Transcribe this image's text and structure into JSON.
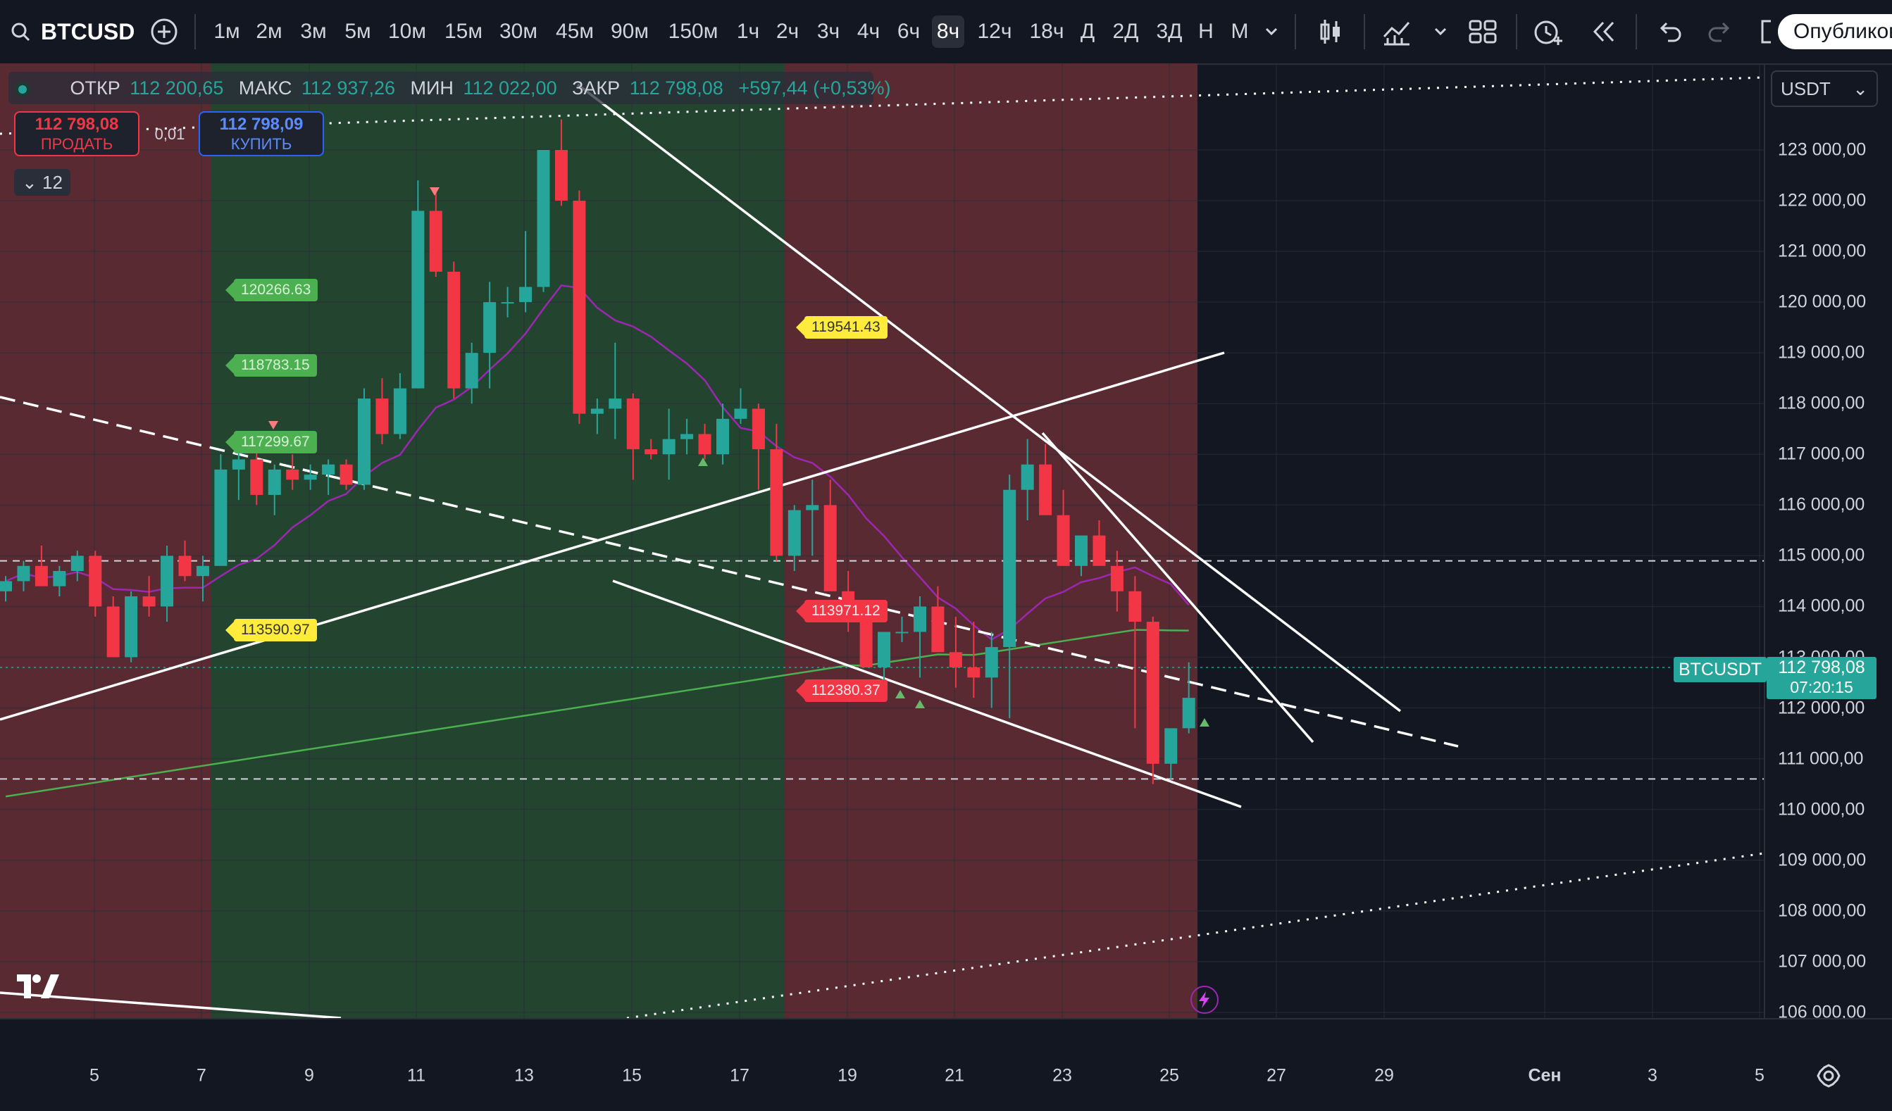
{
  "toolbar": {
    "symbol": "BTCUSD",
    "intervals": [
      "1м",
      "2м",
      "3м",
      "5м",
      "10м",
      "15м",
      "30м",
      "45м",
      "90м",
      "150м",
      "1ч",
      "2ч",
      "3ч",
      "4ч",
      "6ч",
      "8ч",
      "12ч",
      "18ч",
      "Д",
      "2Д",
      "3Д",
      "Н",
      "М"
    ],
    "active_interval": "8ч",
    "publish_label": "Опубликов"
  },
  "legend": {
    "open_label": "ОТКР",
    "open": "112 200,65",
    "high_label": "МАКС",
    "high": "112 937,26",
    "low_label": "МИН",
    "low": "112 022,00",
    "close_label": "ЗАКР",
    "close": "112 798,08",
    "change": "+597,44 (+0,53%)"
  },
  "trade": {
    "sell_price": "112 798,08",
    "sell_label": "ПРОДАТЬ",
    "spread": "0,01",
    "buy_price": "112 798,09",
    "buy_label": "КУПИТЬ"
  },
  "indicators_toggle": "12",
  "currency": "USDT",
  "colors": {
    "up": "#26a69a",
    "down": "#f23645",
    "bg": "#131722",
    "zone_red": "#5a2a33",
    "zone_green": "#23452f",
    "ma_purple": "#9c27b0",
    "ma_green": "#4caf50"
  },
  "price_axis": [
    "123 000,00",
    "122 000,00",
    "121 000,00",
    "120 000,00",
    "119 000,00",
    "118 000,00",
    "117 000,00",
    "116 000,00",
    "115 000,00",
    "114 000,00",
    "113 000,00",
    "112 000,00",
    "111 000,00",
    "110 000,00",
    "109 000,00",
    "108 000,00",
    "107 000,00",
    "106 000,00"
  ],
  "current": {
    "symbol": "BTCUSDT",
    "price": "112 798,08",
    "countdown": "07:20:15"
  },
  "flags": [
    {
      "text": "120266.63",
      "color": "green"
    },
    {
      "text": "118783.15",
      "color": "green"
    },
    {
      "text": "117299.67",
      "color": "green"
    },
    {
      "text": "119541.43",
      "color": "yellow"
    },
    {
      "text": "113590.97",
      "color": "yellow"
    },
    {
      "text": "113971.12",
      "color": "red"
    },
    {
      "text": "112380.37",
      "color": "red"
    }
  ],
  "time_axis": [
    "5",
    "7",
    "9",
    "11",
    "13",
    "15",
    "17",
    "19",
    "21",
    "23",
    "25",
    "27",
    "29",
    "Сен",
    "3",
    "5"
  ],
  "chart_data": {
    "type": "candlestick",
    "interval": "8ч",
    "x_unit": "bar",
    "ylim": [
      106000,
      124000
    ],
    "candles": [
      [
        114300,
        114600,
        114100,
        114500
      ],
      [
        114500,
        114900,
        114300,
        114800
      ],
      [
        114800,
        115200,
        114400,
        114400
      ],
      [
        114400,
        114800,
        114200,
        114700
      ],
      [
        114700,
        115100,
        114500,
        115000
      ],
      [
        115000,
        115100,
        113800,
        114000
      ],
      [
        114000,
        114200,
        113000,
        113000
      ],
      [
        113000,
        114300,
        112900,
        114200
      ],
      [
        114200,
        114600,
        113800,
        114000
      ],
      [
        114000,
        115200,
        113700,
        115000
      ],
      [
        115000,
        115300,
        114500,
        114600
      ],
      [
        114600,
        115000,
        114100,
        114800
      ],
      [
        114800,
        117000,
        114800,
        116700
      ],
      [
        116700,
        117300,
        116100,
        116900
      ],
      [
        116900,
        117200,
        116000,
        116200
      ],
      [
        116200,
        116800,
        115800,
        116700
      ],
      [
        116700,
        117000,
        116300,
        116500
      ],
      [
        116500,
        116800,
        116300,
        116600
      ],
      [
        116600,
        116900,
        116200,
        116800
      ],
      [
        116800,
        116900,
        116300,
        116400
      ],
      [
        116400,
        118300,
        116300,
        118100
      ],
      [
        118100,
        118500,
        117200,
        117400
      ],
      [
        117400,
        118600,
        117300,
        118300
      ],
      [
        118300,
        122400,
        118300,
        121800
      ],
      [
        121800,
        122200,
        120500,
        120600
      ],
      [
        120600,
        120800,
        118100,
        118300
      ],
      [
        118300,
        119200,
        118000,
        119000
      ],
      [
        119000,
        120400,
        118300,
        120000
      ],
      [
        120000,
        120300,
        119700,
        120000
      ],
      [
        120000,
        121400,
        119800,
        120300
      ],
      [
        120300,
        123000,
        120200,
        123000
      ],
      [
        123000,
        123600,
        121900,
        122000
      ],
      [
        122000,
        122200,
        117600,
        117800
      ],
      [
        117800,
        118100,
        117400,
        117900
      ],
      [
        117900,
        119200,
        117300,
        118100
      ],
      [
        118100,
        118200,
        116500,
        117100
      ],
      [
        117100,
        117300,
        116900,
        117000
      ],
      [
        117000,
        117900,
        116500,
        117300
      ],
      [
        117300,
        117700,
        117000,
        117400
      ],
      [
        117400,
        117600,
        116900,
        117000
      ],
      [
        117000,
        118000,
        116800,
        117700
      ],
      [
        117700,
        118300,
        117600,
        117900
      ],
      [
        117900,
        118000,
        116300,
        117100
      ],
      [
        117100,
        117600,
        114900,
        115000
      ],
      [
        115000,
        116000,
        114700,
        115900
      ],
      [
        115900,
        116500,
        115000,
        116000
      ],
      [
        116000,
        116500,
        114300,
        114300
      ],
      [
        114300,
        114700,
        113500,
        113700
      ],
      [
        113700,
        114000,
        112800,
        112800
      ],
      [
        112800,
        113500,
        112300,
        113500
      ],
      [
        113500,
        113800,
        113300,
        113500
      ],
      [
        113500,
        114200,
        112600,
        114000
      ],
      [
        114000,
        114400,
        113200,
        113100
      ],
      [
        113100,
        113800,
        112400,
        112800
      ],
      [
        112800,
        113700,
        112200,
        112600
      ],
      [
        112600,
        113500,
        112000,
        113200
      ],
      [
        113200,
        116600,
        111800,
        116300
      ],
      [
        116300,
        117300,
        115700,
        116800
      ],
      [
        116800,
        117200,
        115900,
        115800
      ],
      [
        115800,
        116300,
        114800,
        114800
      ],
      [
        114800,
        115400,
        114600,
        115400
      ],
      [
        115400,
        115700,
        114900,
        114800
      ],
      [
        114800,
        115100,
        113900,
        114300
      ],
      [
        114300,
        114600,
        111600,
        113700
      ],
      [
        113700,
        113800,
        110500,
        110900
      ],
      [
        110900,
        111600,
        110600,
        111600
      ],
      [
        111600,
        112900,
        111500,
        112200
      ]
    ],
    "price_lines": [
      114900,
      110600
    ],
    "annotations": [
      "120266.63",
      "118783.15",
      "117299.67",
      "119541.43",
      "113590.97",
      "113971.12",
      "112380.37"
    ]
  }
}
